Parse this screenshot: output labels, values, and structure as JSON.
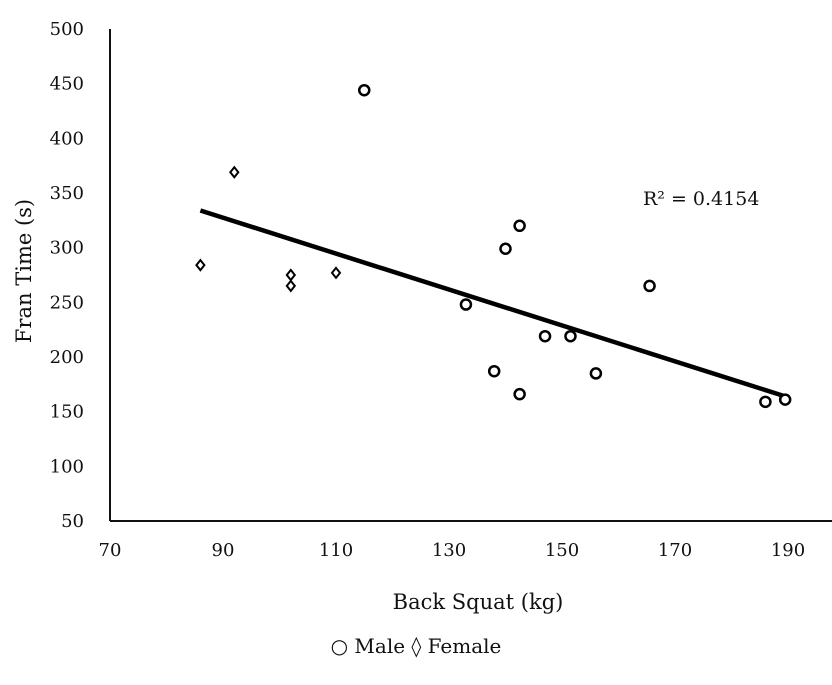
{
  "chart_data": {
    "type": "scatter",
    "xlabel": "Back Squat (kg)",
    "ylabel": "Fran Time (s)",
    "xlim": [
      70,
      190
    ],
    "ylim": [
      50,
      500
    ],
    "x_ticks": [
      "70",
      "90",
      "110",
      "130",
      "150",
      "170",
      "190"
    ],
    "y_ticks": [
      "50",
      "100",
      "150",
      "200",
      "250",
      "300",
      "350",
      "400",
      "450",
      "500"
    ],
    "series": [
      {
        "name": "Male",
        "marker": "circle",
        "points": [
          [
            115,
            444
          ],
          [
            133,
            248
          ],
          [
            138,
            187
          ],
          [
            140,
            299
          ],
          [
            142.5,
            320
          ],
          [
            142.5,
            166
          ],
          [
            147,
            219
          ],
          [
            151.5,
            219
          ],
          [
            156,
            185
          ],
          [
            165.5,
            265
          ],
          [
            186,
            159
          ],
          [
            189.5,
            161
          ]
        ]
      },
      {
        "name": "Female",
        "marker": "diamond",
        "points": [
          [
            86,
            284
          ],
          [
            92,
            369
          ],
          [
            102,
            275
          ],
          [
            102,
            265
          ],
          [
            110,
            277
          ]
        ]
      }
    ],
    "trendline": {
      "x_start": 86,
      "y_start": 334,
      "x_end": 189.5,
      "y_end": 164
    },
    "annotation": "R² = 0.4154",
    "legend_text": "○ Male ◊ Female",
    "grid": false,
    "legend_position": "bottom-center"
  }
}
